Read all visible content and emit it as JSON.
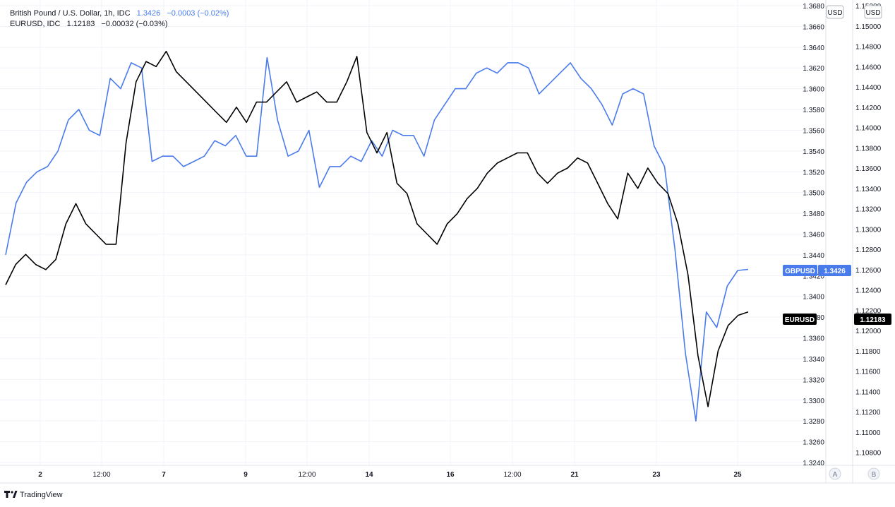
{
  "header": {
    "gbp": {
      "name": "British Pound / U.S. Dollar, 1h, IDC",
      "last": "1.3426",
      "change": "−0.0003 (−0.02%)"
    },
    "eur": {
      "name": "EURUSD, IDC",
      "last": "1.12183",
      "change": "−0.00032 (−0.03%)"
    }
  },
  "colors": {
    "gbp": "#4a7bec",
    "eur": "#000000",
    "grid": "#f0f3fa",
    "axis_text": "#131722",
    "badge_text": "#ffffff"
  },
  "axes": {
    "left_currency": "USD",
    "right_currency": "USD",
    "left_scale_button": "A",
    "right_scale_button": "B"
  },
  "badges": {
    "gbp_label": "GBPUSD",
    "gbp_value": "1.3426",
    "eur_label": "EURUSD",
    "eur_value": "1.12183"
  },
  "branding": {
    "logo_text": "TradingView"
  },
  "chart_data": {
    "type": "line",
    "grid": true,
    "x_ticks": [
      "2",
      "12:00",
      "7",
      "9",
      "12:00",
      "14",
      "16",
      "12:00",
      "21",
      "23",
      "25"
    ],
    "y_left": {
      "range": [
        1.324,
        1.368
      ],
      "ticks": [
        "1.3680",
        "1.3660",
        "1.3640",
        "1.3620",
        "1.3600",
        "1.3580",
        "1.3560",
        "1.3540",
        "1.3520",
        "1.3500",
        "1.3480",
        "1.3460",
        "1.3440",
        "1.3420",
        "1.3400",
        "1.3380",
        "1.3360",
        "1.3340",
        "1.3320",
        "1.3300",
        "1.3280",
        "1.3260",
        "1.3240"
      ]
    },
    "y_right": {
      "range": [
        1.107,
        1.152
      ],
      "ticks": [
        "1.15200",
        "1.15000",
        "1.14800",
        "1.14600",
        "1.14400",
        "1.14200",
        "1.14000",
        "1.13800",
        "1.13600",
        "1.13400",
        "1.13200",
        "1.13000",
        "1.12800",
        "1.12600",
        "1.12400",
        "1.12200",
        "1.12000",
        "1.11800",
        "1.11600",
        "1.11400",
        "1.11200",
        "1.11000",
        "1.10800"
      ]
    },
    "series": [
      {
        "name": "GBPUSD",
        "axis": "left",
        "values": [
          1.344,
          1.349,
          1.351,
          1.352,
          1.3525,
          1.354,
          1.357,
          1.358,
          1.356,
          1.3555,
          1.361,
          1.36,
          1.3625,
          1.362,
          1.353,
          1.3535,
          1.3535,
          1.3525,
          1.353,
          1.3535,
          1.355,
          1.3545,
          1.3555,
          1.3535,
          1.3535,
          1.363,
          1.357,
          1.3535,
          1.354,
          1.356,
          1.3505,
          1.3525,
          1.3525,
          1.3535,
          1.353,
          1.355,
          1.3535,
          1.356,
          1.3555,
          1.3555,
          1.3535,
          1.357,
          1.3585,
          1.36,
          1.36,
          1.3615,
          1.362,
          1.3615,
          1.3625,
          1.3625,
          1.362,
          1.3595,
          1.3605,
          1.3615,
          1.3625,
          1.361,
          1.36,
          1.3585,
          1.3565,
          1.3595,
          1.36,
          1.3595,
          1.3545,
          1.3525,
          1.3445,
          1.3345,
          1.328,
          1.3385,
          1.337,
          1.341,
          1.3425,
          1.3426
        ]
      },
      {
        "name": "EURUSD",
        "axis": "right",
        "values": [
          1.1245,
          1.1265,
          1.1275,
          1.1265,
          1.126,
          1.127,
          1.1305,
          1.1325,
          1.1305,
          1.1295,
          1.1285,
          1.1285,
          1.1385,
          1.1445,
          1.1465,
          1.146,
          1.1475,
          1.1455,
          1.1445,
          1.1435,
          1.1425,
          1.1415,
          1.1405,
          1.142,
          1.1405,
          1.1425,
          1.1425,
          1.1435,
          1.1445,
          1.1425,
          1.143,
          1.1435,
          1.1425,
          1.1425,
          1.1445,
          1.147,
          1.1395,
          1.1375,
          1.1395,
          1.1345,
          1.1335,
          1.1305,
          1.1295,
          1.1285,
          1.1305,
          1.1315,
          1.133,
          1.134,
          1.1355,
          1.1365,
          1.137,
          1.1375,
          1.1375,
          1.1355,
          1.1345,
          1.1355,
          1.136,
          1.137,
          1.1365,
          1.1345,
          1.1325,
          1.131,
          1.1355,
          1.134,
          1.136,
          1.1345,
          1.1335,
          1.1305,
          1.1255,
          1.1175,
          1.1125,
          1.118,
          1.1205,
          1.1215,
          1.12183
        ]
      }
    ]
  }
}
